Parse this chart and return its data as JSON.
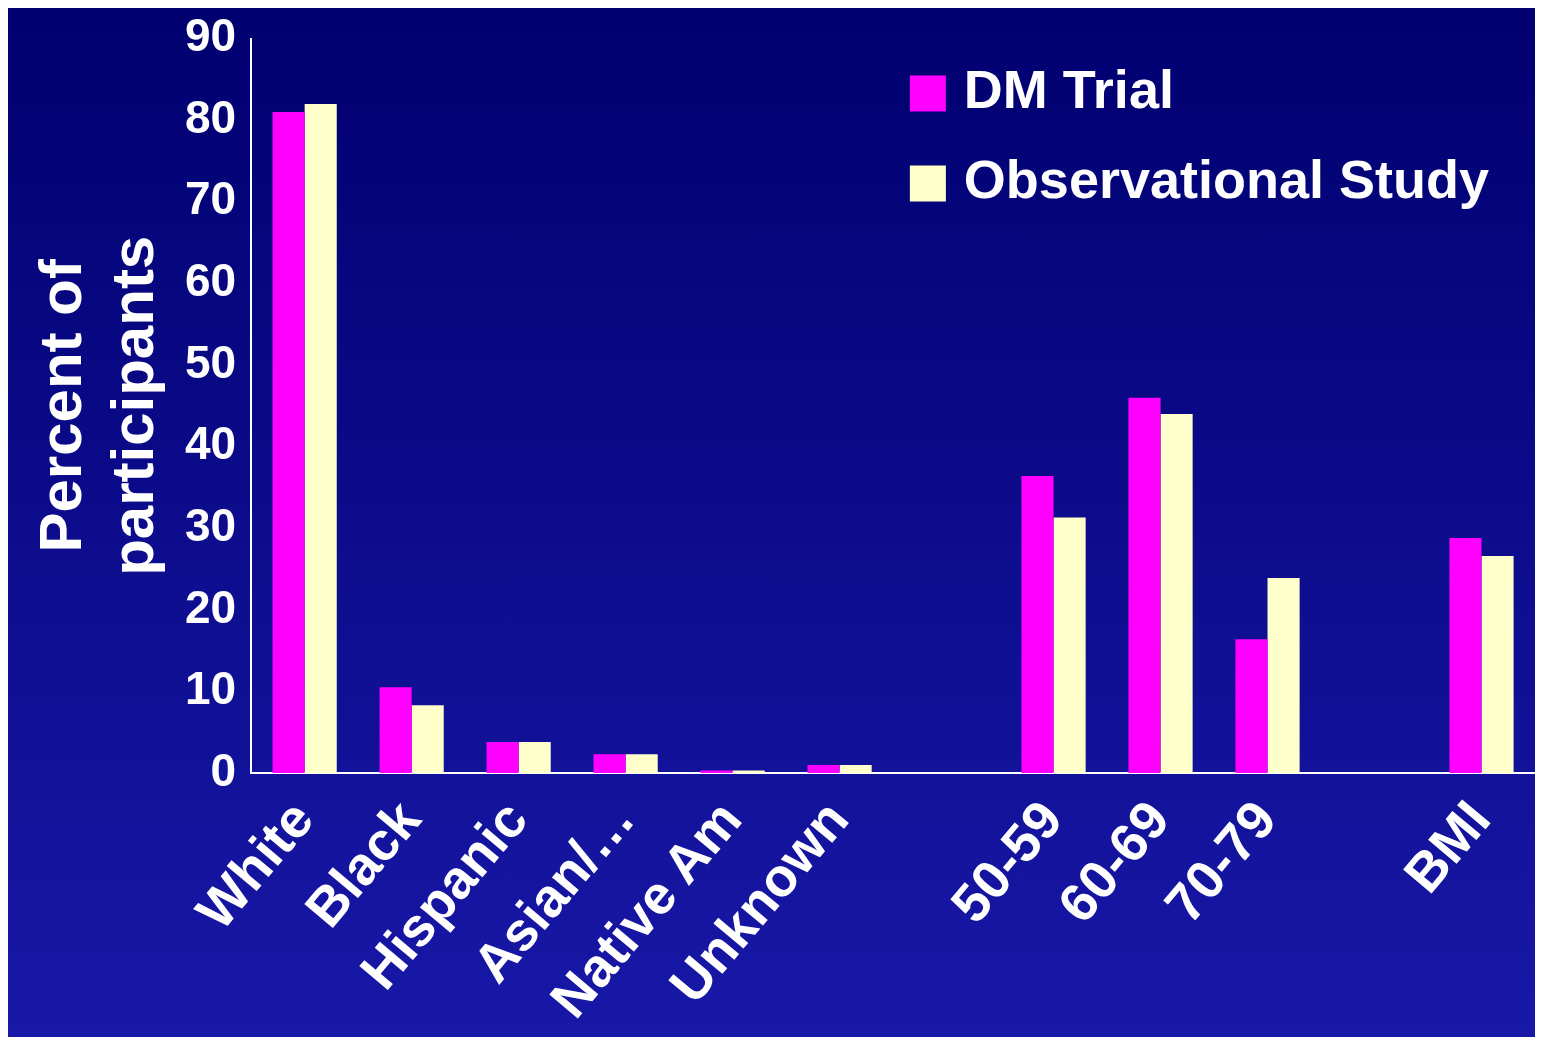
{
  "chart_data": {
    "type": "bar",
    "ylabel": "Percent of participants",
    "categories": [
      "White",
      "Black",
      "Hispanic",
      "Asian/…",
      "Native Am",
      "Unknown",
      null,
      "50-59",
      "60-69",
      "70-79",
      null,
      "BMI"
    ],
    "series": [
      {
        "name": "DM Trial",
        "color": "#ff00ff",
        "values": [
          81,
          10.5,
          3.8,
          2.3,
          0.3,
          1,
          null,
          36.4,
          46,
          16.4,
          null,
          28.8
        ]
      },
      {
        "name": "Observational Study",
        "color": "#ffffcc",
        "values": [
          82,
          8.3,
          3.8,
          2.3,
          0.3,
          1,
          null,
          31.3,
          44,
          23.9,
          null,
          26.6
        ]
      }
    ],
    "ylim": [
      0,
      90
    ],
    "yticks": [
      0,
      10,
      20,
      30,
      40,
      50,
      60,
      70,
      80,
      90
    ],
    "grid": false,
    "legend": "top right"
  }
}
